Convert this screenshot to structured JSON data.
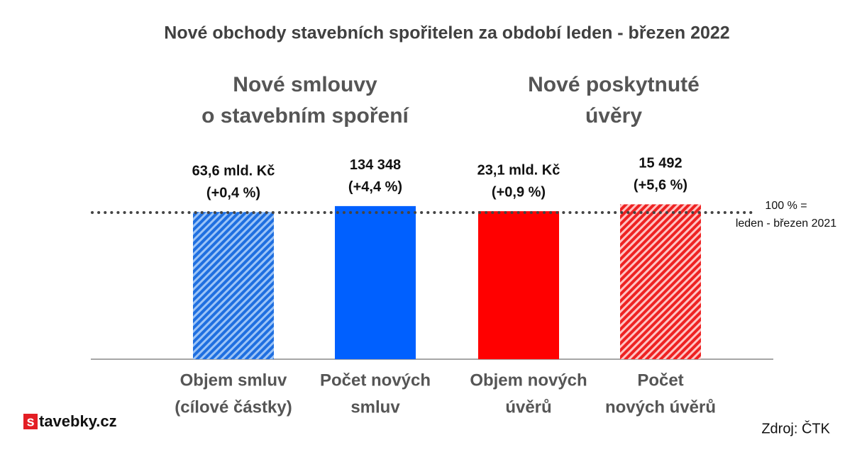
{
  "chart_data": {
    "type": "bar",
    "title": "Nové obchody stavebních spořitelen za období leden - březen 2022",
    "groups": [
      [
        "Nové smlouvy",
        "o stavebním spoření"
      ],
      [
        "Nové poskytnuté",
        "úvěry"
      ]
    ],
    "categories": [
      [
        "Objem smluv",
        "(cílové částky)"
      ],
      [
        "Počet  nových",
        "smluv"
      ],
      [
        "Objem nových",
        "úvěrů"
      ],
      [
        "Počet",
        "nových úvěrů"
      ]
    ],
    "values": [
      100.4,
      104.4,
      100.9,
      105.6
    ],
    "labels": [
      "63,6 mld. Kč",
      "134 348",
      "23,1 mld. Kč",
      "15 492"
    ],
    "changes": [
      "(+0,4 %)",
      "(+4,4 %)",
      "(+0,9 %)",
      "(+5,6 %)"
    ],
    "colors": [
      "#3d8ef5",
      "#0060ff",
      "#ff0000",
      "#ff3b3b"
    ],
    "hatch": [
      true,
      false,
      false,
      true
    ],
    "ylim": [
      0,
      150
    ],
    "reference_line": 100,
    "reference_label": [
      "100 % =",
      "leden - březen 2021"
    ],
    "logo": [
      "s",
      "tavebky.cz"
    ],
    "source": "Zdroj: ČTK"
  }
}
